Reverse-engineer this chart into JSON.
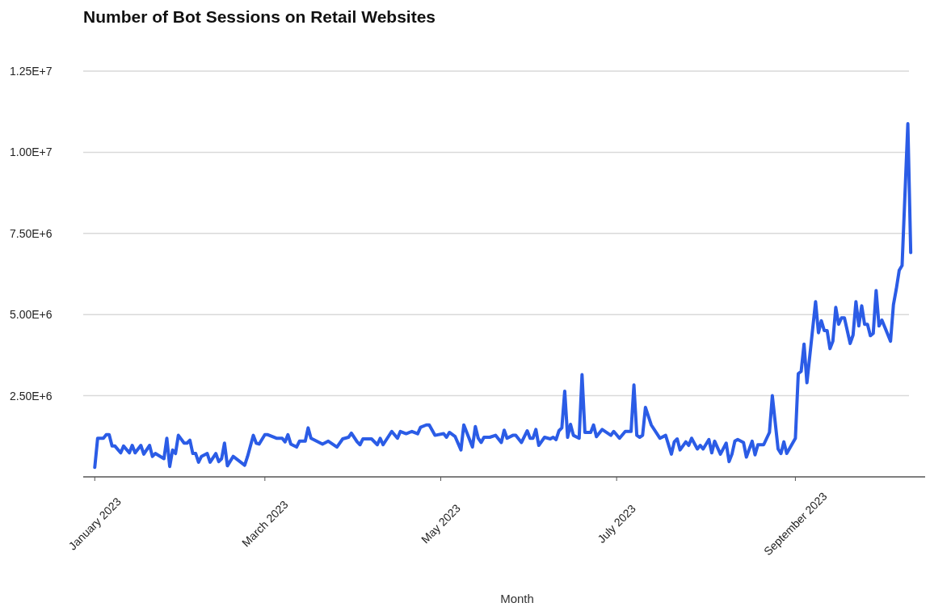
{
  "chart_data": {
    "type": "line",
    "title": "Number of Bot Sessions on Retail Websites",
    "xlabel": "Month",
    "xlim": [
      "2022-12-28",
      "2023-10-16"
    ],
    "xticks": [
      {
        "value": "2023-01-01",
        "label": "January 2023"
      },
      {
        "value": "2023-03-01",
        "label": "March 2023"
      },
      {
        "value": "2023-05-01",
        "label": "May 2023"
      },
      {
        "value": "2023-07-01",
        "label": "July 2023"
      },
      {
        "value": "2023-09-01",
        "label": "September 2023"
      }
    ],
    "ylim": [
      0,
      12500000
    ],
    "yticks": [
      {
        "value": 2500000,
        "label": "2.50E+6"
      },
      {
        "value": 5000000,
        "label": "5.00E+6"
      },
      {
        "value": 7500000,
        "label": "7.50E+6"
      },
      {
        "value": 10000000,
        "label": "1.00E+7"
      },
      {
        "value": 12500000,
        "label": "1.25E+7"
      }
    ],
    "grid": "y",
    "marker": "none",
    "line_style": "solid",
    "x": [
      "2023-01-01",
      "2023-01-02",
      "2023-01-04",
      "2023-01-05",
      "2023-01-06",
      "2023-01-07",
      "2023-01-08",
      "2023-01-10",
      "2023-01-11",
      "2023-01-13",
      "2023-01-14",
      "2023-01-15",
      "2023-01-17",
      "2023-01-18",
      "2023-01-20",
      "2023-01-21",
      "2023-01-22",
      "2023-01-25",
      "2023-01-26",
      "2023-01-27",
      "2023-01-28",
      "2023-01-29",
      "2023-01-30",
      "2023-02-01",
      "2023-02-02",
      "2023-02-03",
      "2023-02-04",
      "2023-02-05",
      "2023-02-06",
      "2023-02-07",
      "2023-02-09",
      "2023-02-10",
      "2023-02-12",
      "2023-02-13",
      "2023-02-14",
      "2023-02-15",
      "2023-02-16",
      "2023-02-18",
      "2023-02-22",
      "2023-02-23",
      "2023-02-25",
      "2023-02-26",
      "2023-02-27",
      "2023-03-01",
      "2023-03-02",
      "2023-03-05",
      "2023-03-07",
      "2023-03-08",
      "2023-03-09",
      "2023-03-10",
      "2023-03-12",
      "2023-03-13",
      "2023-03-15",
      "2023-03-16",
      "2023-03-17",
      "2023-03-21",
      "2023-03-23",
      "2023-03-26",
      "2023-03-28",
      "2023-03-30",
      "2023-03-31",
      "2023-04-02",
      "2023-04-03",
      "2023-04-04",
      "2023-04-07",
      "2023-04-09",
      "2023-04-10",
      "2023-04-11",
      "2023-04-14",
      "2023-04-16",
      "2023-04-17",
      "2023-04-19",
      "2023-04-21",
      "2023-04-23",
      "2023-04-24",
      "2023-04-26",
      "2023-04-27",
      "2023-04-29",
      "2023-05-02",
      "2023-05-03",
      "2023-05-04",
      "2023-05-06",
      "2023-05-08",
      "2023-05-09",
      "2023-05-12",
      "2023-05-13",
      "2023-05-14",
      "2023-05-15",
      "2023-05-16",
      "2023-05-18",
      "2023-05-20",
      "2023-05-22",
      "2023-05-23",
      "2023-05-24",
      "2023-05-26",
      "2023-05-27",
      "2023-05-29",
      "2023-05-31",
      "2023-06-01",
      "2023-06-02",
      "2023-06-03",
      "2023-06-04",
      "2023-06-06",
      "2023-06-08",
      "2023-06-09",
      "2023-06-10",
      "2023-06-11",
      "2023-06-12",
      "2023-06-13",
      "2023-06-14",
      "2023-06-15",
      "2023-06-16",
      "2023-06-18",
      "2023-06-19",
      "2023-06-20",
      "2023-06-22",
      "2023-06-23",
      "2023-06-24",
      "2023-06-26",
      "2023-06-29",
      "2023-06-30",
      "2023-07-02",
      "2023-07-04",
      "2023-07-06",
      "2023-07-07",
      "2023-07-08",
      "2023-07-09",
      "2023-07-10",
      "2023-07-11",
      "2023-07-13",
      "2023-07-16",
      "2023-07-18",
      "2023-07-20",
      "2023-07-21",
      "2023-07-22",
      "2023-07-23",
      "2023-07-25",
      "2023-07-26",
      "2023-07-27",
      "2023-07-29",
      "2023-07-30",
      "2023-07-31",
      "2023-08-02",
      "2023-08-03",
      "2023-08-04",
      "2023-08-06",
      "2023-08-08",
      "2023-08-09",
      "2023-08-10",
      "2023-08-11",
      "2023-08-12",
      "2023-08-14",
      "2023-08-15",
      "2023-08-17",
      "2023-08-18",
      "2023-08-19",
      "2023-08-21",
      "2023-08-23",
      "2023-08-24",
      "2023-08-26",
      "2023-08-27",
      "2023-08-28",
      "2023-08-29",
      "2023-09-01",
      "2023-09-02",
      "2023-09-03",
      "2023-09-04",
      "2023-09-05",
      "2023-09-08",
      "2023-09-09",
      "2023-09-10",
      "2023-09-11",
      "2023-09-12",
      "2023-09-13",
      "2023-09-14",
      "2023-09-15",
      "2023-09-16",
      "2023-09-17",
      "2023-09-18",
      "2023-09-20",
      "2023-09-21",
      "2023-09-22",
      "2023-09-23",
      "2023-09-24",
      "2023-09-25",
      "2023-09-26",
      "2023-09-27",
      "2023-09-28",
      "2023-09-29",
      "2023-09-30",
      "2023-10-01",
      "2023-10-04",
      "2023-10-05",
      "2023-10-06",
      "2023-10-07",
      "2023-10-08",
      "2023-10-10",
      "2023-10-11"
    ],
    "series": [
      {
        "color": "#2b5ce6",
        "values": [
          290000,
          1190000,
          1190000,
          1300000,
          1300000,
          950000,
          950000,
          740000,
          950000,
          740000,
          970000,
          740000,
          970000,
          700000,
          970000,
          630000,
          720000,
          560000,
          1190000,
          320000,
          830000,
          720000,
          1280000,
          1040000,
          1040000,
          1130000,
          720000,
          720000,
          450000,
          630000,
          720000,
          450000,
          720000,
          470000,
          560000,
          1040000,
          340000,
          630000,
          360000,
          630000,
          1280000,
          1040000,
          1010000,
          1300000,
          1300000,
          1190000,
          1190000,
          1080000,
          1300000,
          1010000,
          920000,
          1100000,
          1100000,
          1510000,
          1190000,
          1010000,
          1100000,
          920000,
          1170000,
          1220000,
          1350000,
          1080000,
          990000,
          1170000,
          1170000,
          990000,
          1190000,
          990000,
          1400000,
          1190000,
          1400000,
          1330000,
          1400000,
          1330000,
          1530000,
          1600000,
          1600000,
          1280000,
          1330000,
          1220000,
          1370000,
          1240000,
          830000,
          1600000,
          920000,
          1550000,
          1190000,
          1060000,
          1220000,
          1220000,
          1280000,
          1060000,
          1440000,
          1190000,
          1280000,
          1280000,
          1060000,
          1420000,
          1190000,
          1190000,
          1460000,
          970000,
          1220000,
          1170000,
          1220000,
          1150000,
          1420000,
          1510000,
          2640000,
          1220000,
          1620000,
          1280000,
          1190000,
          3150000,
          1370000,
          1370000,
          1600000,
          1240000,
          1460000,
          1280000,
          1400000,
          1190000,
          1400000,
          1400000,
          2830000,
          1280000,
          1220000,
          1280000,
          2140000,
          1600000,
          1190000,
          1280000,
          700000,
          1080000,
          1170000,
          830000,
          1080000,
          970000,
          1190000,
          860000,
          970000,
          860000,
          1150000,
          740000,
          1100000,
          700000,
          1040000,
          470000,
          700000,
          1100000,
          1150000,
          1060000,
          610000,
          1100000,
          680000,
          990000,
          990000,
          1370000,
          2500000,
          860000,
          720000,
          1080000,
          720000,
          1190000,
          3180000,
          3250000,
          4090000,
          2900000,
          5400000,
          4440000,
          4810000,
          4510000,
          4510000,
          3950000,
          4180000,
          5220000,
          4700000,
          4900000,
          4900000,
          4110000,
          4370000,
          5400000,
          4650000,
          5270000,
          4700000,
          4700000,
          4350000,
          4420000,
          5740000,
          4650000,
          4830000,
          4180000,
          5300000,
          5790000,
          6360000,
          6510000,
          10880000,
          6910000
        ]
      }
    ]
  }
}
